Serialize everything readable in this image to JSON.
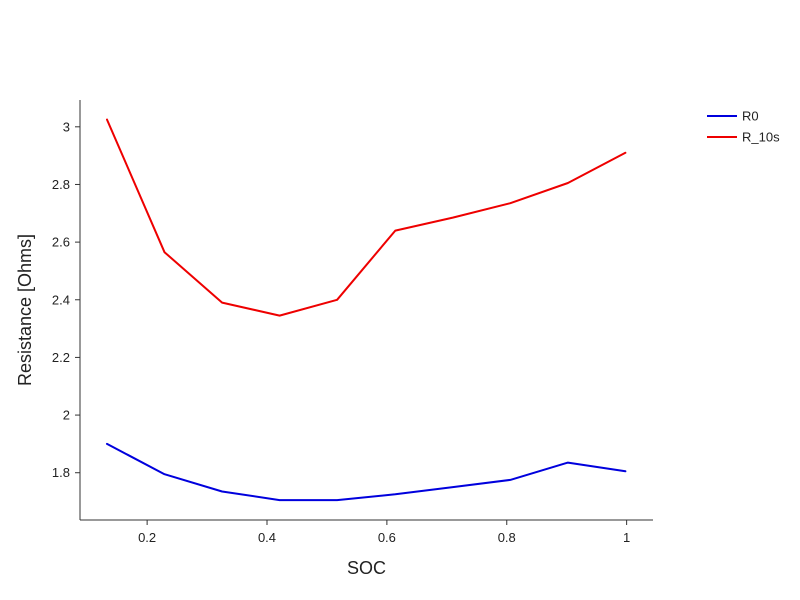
{
  "chart_data": {
    "type": "line",
    "xlabel": "SOC",
    "ylabel": "Resistance [Ohms]",
    "xlim": [
      0.088,
      1.044
    ],
    "ylim": [
      1.636,
      3.093
    ],
    "xticks": [
      0.2,
      0.4,
      0.6,
      0.8,
      1.0
    ],
    "xtick_labels": [
      "0.2",
      "0.4",
      "0.6",
      "0.8",
      "1"
    ],
    "yticks": [
      1.8,
      2.0,
      2.2,
      2.4,
      2.6,
      2.8,
      3.0
    ],
    "ytick_labels": [
      "1.8",
      "2",
      "2.2",
      "2.4",
      "2.6",
      "2.8",
      "3"
    ],
    "x": [
      0.133,
      0.229,
      0.325,
      0.421,
      0.517,
      0.614,
      0.71,
      0.806,
      0.902,
      0.998
    ],
    "grid": false,
    "legend_position": "top-right",
    "series": [
      {
        "name": "R0",
        "color": "#0000dd",
        "values": [
          1.9,
          1.795,
          1.735,
          1.705,
          1.705,
          1.725,
          1.75,
          1.775,
          1.835,
          1.805
        ]
      },
      {
        "name": "R_10s",
        "color": "#ee0000",
        "values": [
          3.025,
          2.565,
          2.39,
          2.345,
          2.4,
          2.64,
          2.685,
          2.735,
          2.805,
          2.91
        ]
      }
    ]
  }
}
